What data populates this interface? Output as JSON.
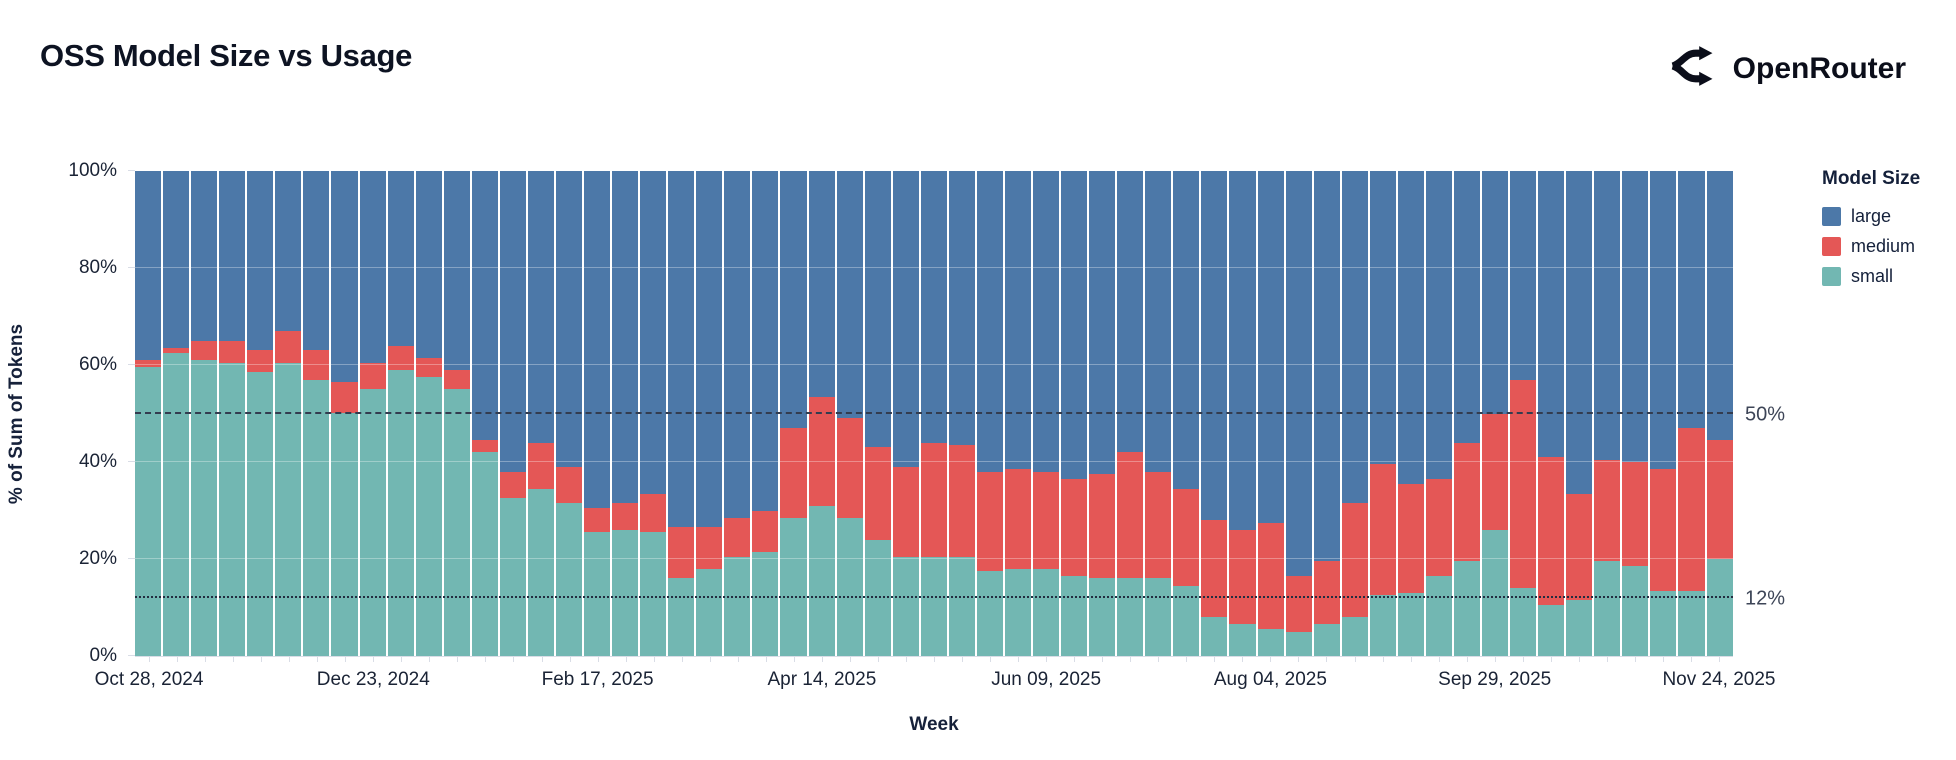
{
  "header": {
    "title": "OSS Model Size vs Usage",
    "brand": "OpenRouter",
    "logo_icon": "route-split-icon"
  },
  "legend": {
    "title": "Model Size",
    "items": [
      {
        "label": "large",
        "color": "#4C78A8"
      },
      {
        "label": "medium",
        "color": "#E45756"
      },
      {
        "label": "small",
        "color": "#72B7B2"
      }
    ]
  },
  "annotations": {
    "line_50_label": "50%",
    "line_12_label": "12%"
  },
  "chart_data": {
    "type": "bar",
    "stacked": true,
    "title": "OSS Model Size vs Usage",
    "xlabel": "Week",
    "ylabel": "% of Sum of Tokens",
    "ylim": [
      0,
      100
    ],
    "grid": true,
    "legend_position": "right",
    "y_ticks": [
      {
        "value": 0,
        "label": "0%"
      },
      {
        "value": 20,
        "label": "20%"
      },
      {
        "value": 40,
        "label": "40%"
      },
      {
        "value": 60,
        "label": "60%"
      },
      {
        "value": 80,
        "label": "80%"
      },
      {
        "value": 100,
        "label": "100%"
      }
    ],
    "x_tick_indices": [
      0,
      8,
      16,
      24,
      32,
      40,
      48,
      56
    ],
    "x_tick_labels": [
      "Oct 28, 2024",
      "Dec 23, 2024",
      "Feb 17, 2025",
      "Apr 14, 2025",
      "Jun 09, 2025",
      "Aug 04, 2025",
      "Sep 29, 2025",
      "Nov 24, 2025"
    ],
    "reference_lines": [
      {
        "value": 50,
        "label": "50%",
        "style": "dashed"
      },
      {
        "value": 12,
        "label": "12%",
        "style": "dotted"
      }
    ],
    "categories": [
      "Oct 28, 2024",
      "Nov 04, 2024",
      "Nov 11, 2024",
      "Nov 18, 2024",
      "Nov 25, 2024",
      "Dec 02, 2024",
      "Dec 09, 2024",
      "Dec 16, 2024",
      "Dec 23, 2024",
      "Dec 30, 2024",
      "Jan 06, 2025",
      "Jan 13, 2025",
      "Jan 20, 2025",
      "Jan 27, 2025",
      "Feb 03, 2025",
      "Feb 10, 2025",
      "Feb 17, 2025",
      "Feb 24, 2025",
      "Mar 03, 2025",
      "Mar 10, 2025",
      "Mar 17, 2025",
      "Mar 24, 2025",
      "Mar 31, 2025",
      "Apr 07, 2025",
      "Apr 14, 2025",
      "Apr 21, 2025",
      "Apr 28, 2025",
      "May 05, 2025",
      "May 12, 2025",
      "May 19, 2025",
      "May 26, 2025",
      "Jun 02, 2025",
      "Jun 09, 2025",
      "Jun 16, 2025",
      "Jun 23, 2025",
      "Jun 30, 2025",
      "Jul 07, 2025",
      "Jul 14, 2025",
      "Jul 21, 2025",
      "Jul 28, 2025",
      "Aug 04, 2025",
      "Aug 11, 2025",
      "Aug 18, 2025",
      "Aug 25, 2025",
      "Sep 01, 2025",
      "Sep 08, 2025",
      "Sep 15, 2025",
      "Sep 22, 2025",
      "Sep 29, 2025",
      "Oct 06, 2025",
      "Oct 13, 2025",
      "Oct 20, 2025",
      "Oct 27, 2025",
      "Nov 03, 2025",
      "Nov 10, 2025",
      "Nov 17, 2025",
      "Nov 24, 2025"
    ],
    "series": [
      {
        "name": "small",
        "color": "#72B7B2",
        "values": [
          59.5,
          62.5,
          61,
          60.5,
          58.5,
          60.5,
          57,
          50,
          55,
          59,
          57.5,
          55,
          42,
          32.5,
          34.5,
          31.5,
          25.5,
          26,
          25.5,
          16,
          18,
          20.5,
          21.5,
          28.5,
          31,
          28.5,
          24,
          20.5,
          20.5,
          20.5,
          17.5,
          18,
          18,
          16.5,
          16,
          16,
          16,
          14.5,
          8,
          6.5,
          5.5,
          5,
          6.5,
          8,
          12.5,
          13,
          16.5,
          19.5,
          26,
          14,
          10.5,
          11.5,
          19.5,
          18.5,
          13.5,
          13.5,
          20
        ]
      },
      {
        "name": "medium",
        "color": "#E45756",
        "values": [
          1.5,
          1,
          4,
          4.5,
          4.5,
          6.5,
          6,
          6.5,
          5.5,
          5,
          4,
          4,
          2.5,
          5.5,
          9.5,
          7.5,
          5,
          5.5,
          8,
          10.5,
          8.5,
          8,
          8.5,
          18.5,
          22.5,
          20.5,
          19,
          18.5,
          23.5,
          23,
          20.5,
          20.5,
          20,
          20,
          21.5,
          26,
          22,
          20,
          20,
          19.5,
          22,
          11.5,
          13,
          23.5,
          27,
          22.5,
          20,
          24.5,
          24,
          43,
          30.5,
          22,
          21,
          21.5,
          25,
          33.5,
          24.5
        ]
      },
      {
        "name": "large",
        "color": "#4C78A8",
        "values": [
          39,
          36.5,
          35,
          35,
          37,
          33,
          37,
          43.5,
          39.5,
          36,
          38.5,
          41,
          55.5,
          62,
          56,
          61,
          69.5,
          68.5,
          66.5,
          73.5,
          73.5,
          71.5,
          70,
          53,
          46.5,
          51,
          57,
          61,
          56,
          56.5,
          62,
          61.5,
          62,
          63.5,
          62.5,
          58,
          62,
          65.5,
          72,
          74,
          72.5,
          83.5,
          80.5,
          68.5,
          60.5,
          64.5,
          63.5,
          56,
          50,
          43,
          59,
          66.5,
          59.5,
          60,
          61.5,
          53,
          55.5
        ]
      }
    ]
  }
}
